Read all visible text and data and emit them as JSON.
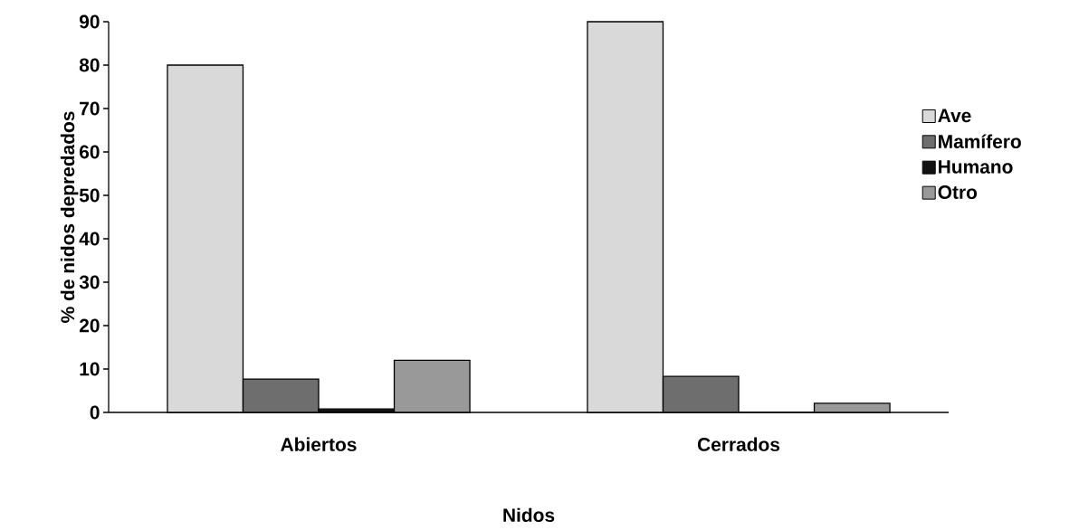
{
  "chart_data": {
    "type": "bar",
    "xlabel": "Nidos",
    "ylabel": "% de nidos depredados",
    "categories": [
      "Abiertos",
      "Cerrados"
    ],
    "series": [
      {
        "name": "Ave",
        "color": "#d9d9d9",
        "values": [
          80,
          90
        ]
      },
      {
        "name": "Mamífero",
        "color": "#6e6e6e",
        "values": [
          7.7,
          8.3
        ]
      },
      {
        "name": "Humano",
        "color": "#111111",
        "values": [
          0.8,
          0
        ]
      },
      {
        "name": "Otro",
        "color": "#999999",
        "values": [
          12,
          2.1
        ]
      }
    ],
    "ylim": [
      0,
      90
    ],
    "yticks": [
      0,
      10,
      20,
      30,
      40,
      50,
      60,
      70,
      80,
      90
    ],
    "legend": "right"
  }
}
